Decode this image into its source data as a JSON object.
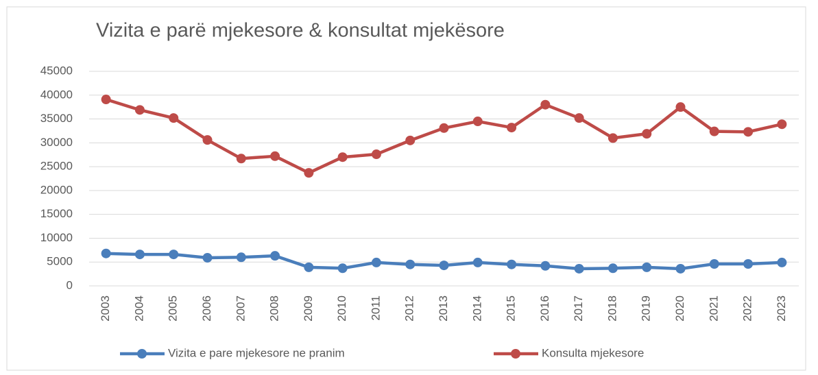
{
  "chart_data": {
    "type": "line",
    "title": "Vizita e parë mjekesore & konsultat mjekësore",
    "categories": [
      "2003",
      "2004",
      "2005",
      "2006",
      "2007",
      "2008",
      "2009",
      "2010",
      "2011",
      "2012",
      "2013",
      "2014",
      "2015",
      "2016",
      "2017",
      "2018",
      "2019",
      "2020",
      "2021",
      "2022",
      "2023"
    ],
    "series": [
      {
        "name": "Vizita e pare mjekesore ne pranim",
        "color": "#4a7ebb",
        "values": [
          6800,
          6600,
          6600,
          5900,
          6000,
          6300,
          3900,
          3700,
          4900,
          4500,
          4300,
          4900,
          4500,
          4200,
          3600,
          3700,
          3900,
          3600,
          4600,
          4600,
          4900
        ]
      },
      {
        "name": "Konsulta mjekesore",
        "color": "#be4b48",
        "values": [
          39100,
          36900,
          35200,
          30600,
          26700,
          27200,
          23700,
          27000,
          27600,
          30500,
          33100,
          34500,
          33200,
          38000,
          35200,
          31000,
          31900,
          37500,
          32400,
          32300,
          33900
        ]
      }
    ],
    "ylim": [
      0,
      45000
    ],
    "yticks": [
      0,
      5000,
      10000,
      15000,
      20000,
      25000,
      30000,
      35000,
      40000,
      45000
    ],
    "grid": true,
    "legend": "bottom"
  }
}
